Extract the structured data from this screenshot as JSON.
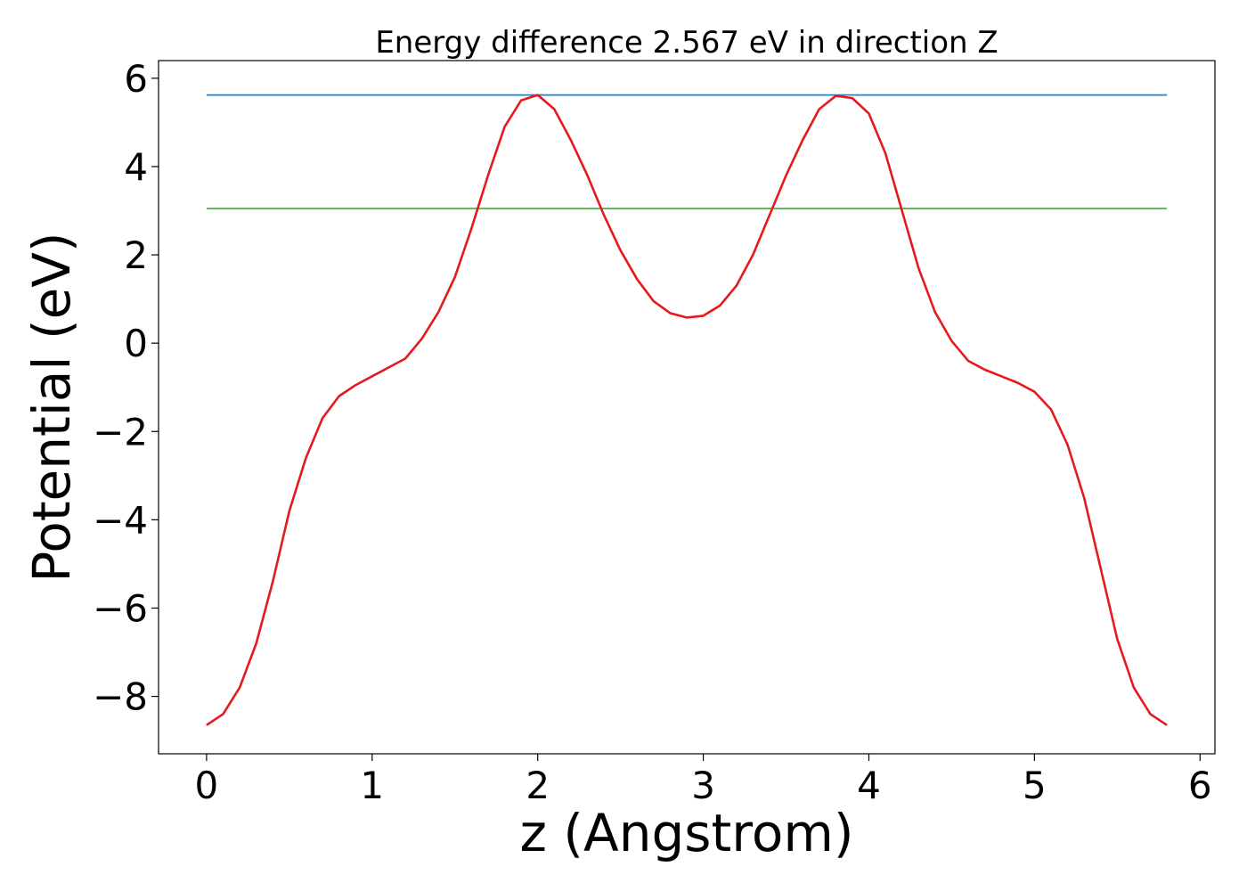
{
  "chart_data": {
    "type": "line",
    "title": "Energy difference 2.567 eV in direction Z",
    "xlabel": "z (Angstrom)",
    "ylabel": "Potential (eV)",
    "xlim": [
      -0.29,
      6.09
    ],
    "ylim": [
      -9.3,
      6.4
    ],
    "xticks": [
      0,
      1,
      2,
      3,
      4,
      5,
      6
    ],
    "xtick_labels": [
      "0",
      "1",
      "2",
      "3",
      "4",
      "5",
      "6"
    ],
    "yticks": [
      -8,
      -6,
      -4,
      -2,
      0,
      2,
      4,
      6
    ],
    "ytick_labels": [
      "−8",
      "−6",
      "−4",
      "−2",
      "0",
      "2",
      "4",
      "6"
    ],
    "grid": false,
    "colors": {
      "potential": "#e41a1c",
      "max_level": "#377eb8",
      "mean_level": "#4daf4a"
    },
    "series": [
      {
        "key": "potential",
        "x": [
          0,
          0.1,
          0.2,
          0.3,
          0.4,
          0.5,
          0.6,
          0.7,
          0.8,
          0.9,
          1.0,
          1.1,
          1.2,
          1.3,
          1.4,
          1.5,
          1.6,
          1.7,
          1.8,
          1.9,
          2.0,
          2.1,
          2.2,
          2.3,
          2.4,
          2.5,
          2.6,
          2.7,
          2.8,
          2.9,
          3.0,
          3.1,
          3.2,
          3.3,
          3.4,
          3.5,
          3.6,
          3.7,
          3.8,
          3.9,
          4.0,
          4.1,
          4.2,
          4.3,
          4.4,
          4.5,
          4.6,
          4.7,
          4.8,
          4.9,
          5.0,
          5.1,
          5.2,
          5.3,
          5.4,
          5.5,
          5.6,
          5.7,
          5.8
        ],
        "y": [
          -8.65,
          -8.4,
          -7.8,
          -6.8,
          -5.4,
          -3.8,
          -2.6,
          -1.7,
          -1.2,
          -0.95,
          -0.75,
          -0.55,
          -0.35,
          0.1,
          0.7,
          1.5,
          2.6,
          3.8,
          4.9,
          5.5,
          5.62,
          5.3,
          4.6,
          3.8,
          2.9,
          2.1,
          1.45,
          0.95,
          0.68,
          0.58,
          0.62,
          0.85,
          1.3,
          2.0,
          2.9,
          3.8,
          4.6,
          5.3,
          5.6,
          5.55,
          5.2,
          4.3,
          3.0,
          1.7,
          0.7,
          0.05,
          -0.4,
          -0.6,
          -0.75,
          -0.9,
          -1.1,
          -1.5,
          -2.3,
          -3.5,
          -5.1,
          -6.7,
          -7.8,
          -8.4,
          -8.65
        ]
      },
      {
        "key": "max_level",
        "x": [
          0,
          5.8
        ],
        "y": [
          5.62,
          5.62
        ]
      },
      {
        "key": "mean_level",
        "x": [
          0,
          5.8
        ],
        "y": [
          3.05,
          3.05
        ]
      }
    ]
  }
}
